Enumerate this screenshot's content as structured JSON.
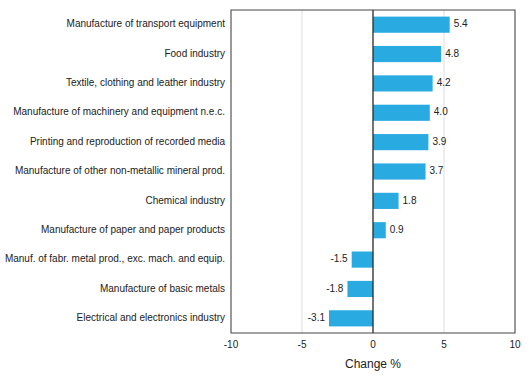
{
  "chart_data": {
    "type": "bar",
    "orientation": "horizontal",
    "categories": [
      "Electrical and electronics industry",
      "Manufacture of basic metals",
      "Manuf. of fabr. metal prod., exc. mach. and equip.",
      "Manufacture of paper and paper products",
      "Chemical industry",
      "Manufacture of other non-metallic mineral prod.",
      "Printing and reproduction of recorded media",
      "Manufacture of machinery and equipment n.e.c.",
      "Textile, clothing and leather industry",
      "Food industry",
      "Manufacture of transport equipment"
    ],
    "values": [
      -3.1,
      -1.8,
      -1.5,
      0.9,
      1.8,
      3.7,
      3.9,
      4.0,
      4.2,
      4.8,
      5.4
    ],
    "value_labels": [
      "-3.1",
      "-1.8",
      "-1.5",
      "0.9",
      "1.8",
      "3.7",
      "3.9",
      "4.0",
      "4.2",
      "4.8",
      "5.4"
    ],
    "color": "#29abe2",
    "xlabel": "Change %",
    "xlim": [
      -10,
      10
    ],
    "xticks": [
      -10,
      -5,
      0,
      5,
      10
    ],
    "grid": true,
    "data_labels": true
  }
}
